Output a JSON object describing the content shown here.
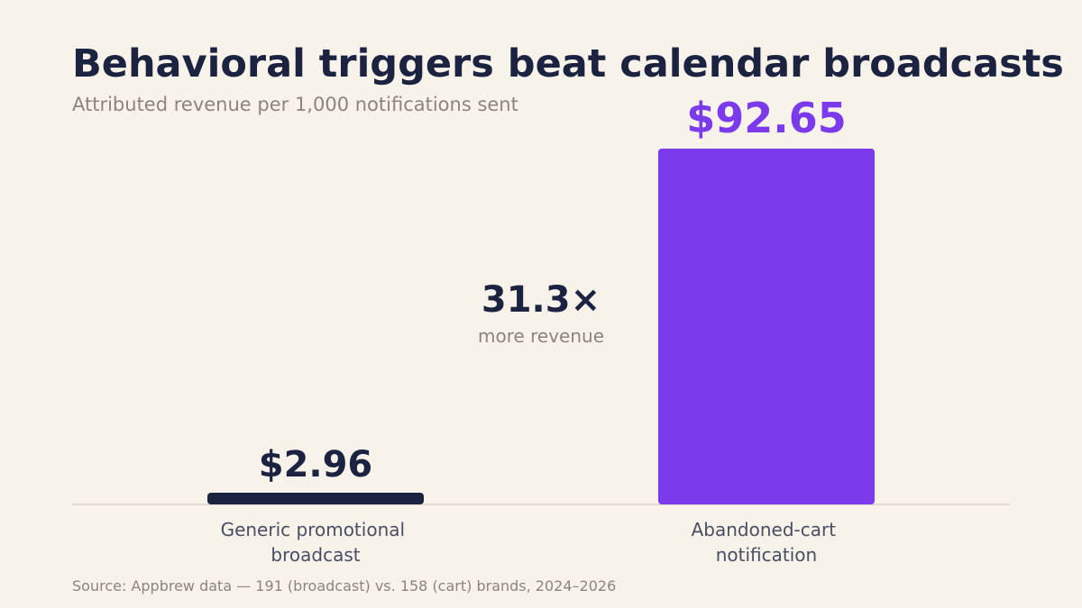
{
  "title": "Behavioral triggers beat calendar broadcasts",
  "subtitle": "Attributed revenue per 1,000 notifications sent",
  "source": "Source: Appbrew data — 191 (broadcast) vs. 158 (cart) brands, 2024–2026",
  "colors": {
    "background": "#f7f2ea",
    "broadcast": "#1c2340",
    "cart": "#7c3aed",
    "muted_text": "#8c857c",
    "axis_label": "#4a4e63"
  },
  "chart_data": {
    "type": "bar",
    "categories": [
      [
        "Generic promotional",
        "broadcast"
      ],
      [
        "Abandoned-cart",
        "notification"
      ]
    ],
    "values": [
      2.96,
      92.65
    ],
    "value_labels": [
      "$2.96",
      "$92.65"
    ],
    "ylabel": "",
    "xlabel": "",
    "ylim": [
      0,
      92.65
    ],
    "grid": false,
    "annotation": {
      "value": "31.3×",
      "caption": "more revenue"
    }
  }
}
